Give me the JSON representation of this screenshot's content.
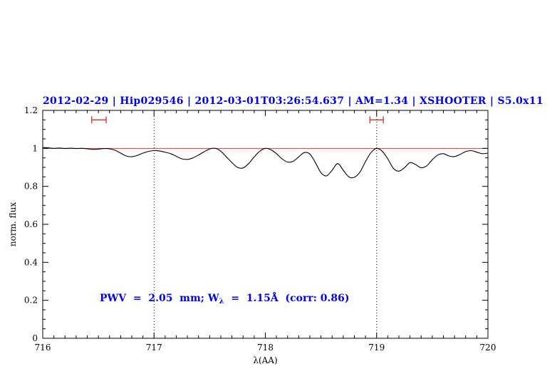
{
  "chart_data": {
    "type": "line",
    "title": "2012-02-29 | Hip029546 | 2012-03-01T03:26:54.637 | AM=1.34 | XSHOOTER | S5.0x11",
    "xlabel": "λ(AA)",
    "ylabel": "norm. flux",
    "xlim": [
      716,
      720
    ],
    "ylim": [
      0,
      1.2
    ],
    "x_ticks": [
      716,
      717,
      718,
      719,
      720
    ],
    "x_tick_labels": [
      "716",
      "717",
      "718",
      "719",
      "720"
    ],
    "y_ticks": [
      0,
      0.2,
      0.4,
      0.6,
      0.8,
      1,
      1.2
    ],
    "y_tick_labels": [
      "0",
      "0.2",
      "0.4",
      "0.6",
      "0.8",
      "1",
      "1.2"
    ],
    "grid": false,
    "legend": "none",
    "dotted_vlines": [
      717,
      719
    ],
    "continuum_line": {
      "y": 1.0
    },
    "range_markers": [
      {
        "x_start": 716.44,
        "x_end": 716.57,
        "y": 1.15
      },
      {
        "x_start": 718.94,
        "x_end": 719.06,
        "y": 1.15
      }
    ],
    "annotation": {
      "prefix": "PWV  =  2.05  mm; W",
      "subscript": "λ",
      "suffix": "  =  1.15Å  (corr: 0.86)"
    },
    "colors": {
      "accent_blue": "#0000dd",
      "marker_red": "#cc3333",
      "continuum_red": "#cc4444",
      "spectrum_black": "#000000"
    },
    "series": [
      {
        "name": "normalized_spectrum",
        "x": [
          716,
          716.05,
          716.1,
          716.15,
          716.2,
          716.25,
          716.3,
          716.35,
          716.4,
          716.45,
          716.5,
          716.55,
          716.6,
          716.65,
          716.7,
          716.75,
          716.8,
          716.85,
          716.9,
          716.95,
          717,
          717.05,
          717.1,
          717.15,
          717.2,
          717.25,
          717.3,
          717.35,
          717.4,
          717.45,
          717.5,
          717.55,
          717.6,
          717.65,
          717.7,
          717.75,
          717.8,
          717.85,
          717.9,
          717.95,
          718,
          718.05,
          718.1,
          718.15,
          718.2,
          718.25,
          718.3,
          718.35,
          718.4,
          718.45,
          718.5,
          718.55,
          718.6,
          718.65,
          718.7,
          718.75,
          718.8,
          718.85,
          718.9,
          718.95,
          719,
          719.05,
          719.1,
          719.15,
          719.2,
          719.25,
          719.3,
          719.35,
          719.4,
          719.45,
          719.5,
          719.55,
          719.6,
          719.65,
          719.7,
          719.75,
          719.8,
          719.85,
          719.9,
          719.95,
          720
        ],
        "y": [
          1.005,
          1.003,
          1.0,
          1.002,
          0.999,
          1.001,
          0.999,
          1.0,
          0.998,
          0.995,
          0.996,
          0.999,
          0.998,
          0.99,
          0.975,
          0.96,
          0.956,
          0.963,
          0.975,
          0.984,
          0.988,
          0.986,
          0.98,
          0.972,
          0.958,
          0.945,
          0.942,
          0.95,
          0.965,
          0.982,
          0.997,
          1.0,
          0.985,
          0.955,
          0.925,
          0.9,
          0.897,
          0.92,
          0.955,
          0.985,
          1.0,
          0.993,
          0.972,
          0.945,
          0.928,
          0.932,
          0.955,
          0.978,
          0.97,
          0.925,
          0.872,
          0.855,
          0.885,
          0.92,
          0.885,
          0.85,
          0.848,
          0.875,
          0.93,
          0.978,
          1.0,
          0.985,
          0.945,
          0.895,
          0.88,
          0.898,
          0.925,
          0.915,
          0.898,
          0.908,
          0.94,
          0.965,
          0.972,
          0.96,
          0.957,
          0.968,
          0.983,
          0.988,
          0.98,
          0.972,
          0.975
        ]
      }
    ]
  }
}
